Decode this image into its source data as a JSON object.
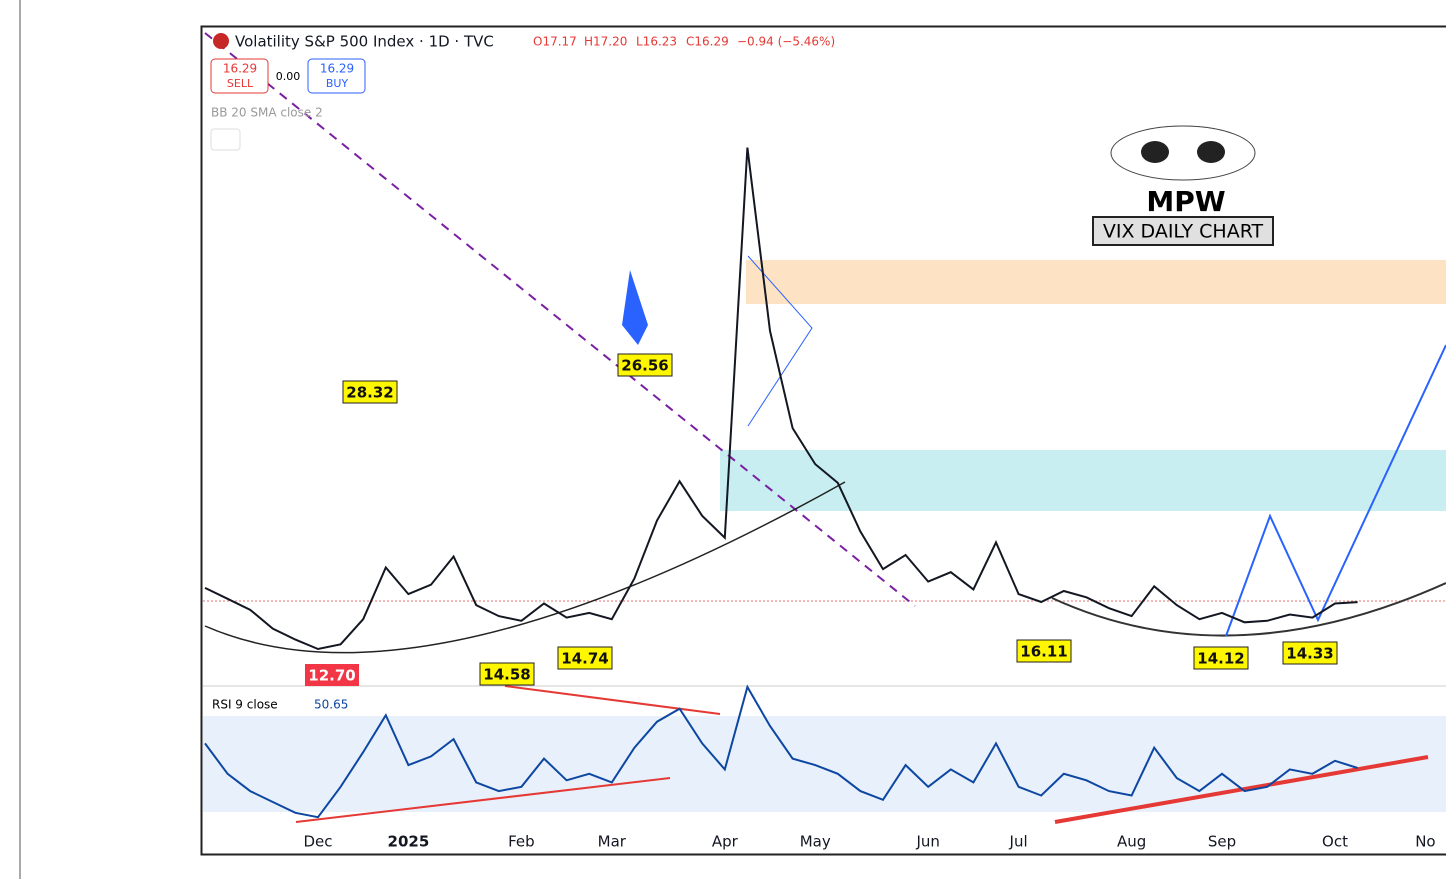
{
  "header": {
    "title": "Volatility S&P 500 Index · 1D · TVC",
    "ohlc": [
      "O17.17",
      "H17.20",
      "L16.23",
      "C16.29",
      "−0.94 (−5.46%)"
    ],
    "sell_price": "16.29",
    "sell": "SELL",
    "spread": "0.00",
    "buy_price": "16.29",
    "buy": "BUY",
    "indicator": "BB 20 SMA close 2",
    "rsi_name": "RSI 9 close",
    "rsi_value": "50.65"
  },
  "branding": {
    "logo": "MPW",
    "caption": "VIX DAILY CHART"
  },
  "annotations": [
    "28.32",
    "26.56",
    "12.70",
    "14.58",
    "14.74",
    "16.11",
    "14.12",
    "14.33"
  ],
  "chart_data": [
    {
      "type": "line",
      "color": "#131722",
      "ylim": [
        11,
        53
      ],
      "categories": [
        null,
        null,
        null,
        null,
        null,
        "Dec",
        null,
        null,
        null,
        "2025",
        null,
        null,
        null,
        null,
        "Feb",
        null,
        null,
        null,
        "Mar",
        null,
        null,
        null,
        null,
        "Apr",
        null,
        null,
        null,
        "May",
        null,
        null,
        null,
        null,
        "Jun",
        null,
        null,
        null,
        "Jul",
        null,
        null,
        null,
        null,
        "Aug",
        null,
        null,
        null,
        "Sep",
        null,
        null,
        null,
        null,
        "Oct",
        null,
        null,
        null,
        "No"
      ],
      "values": [
        17.2,
        16.5,
        15.8,
        14.6,
        13.9,
        13.3,
        13.6,
        15.2,
        18.5,
        16.8,
        17.4,
        19.2,
        16.1,
        15.4,
        15.1,
        16.2,
        15.3,
        15.6,
        15.2,
        17.8,
        21.5,
        24.0,
        21.8,
        20.4,
        45.3,
        33.6,
        27.4,
        25.1,
        23.9,
        20.8,
        18.4,
        19.3,
        17.6,
        18.2,
        17.1,
        20.1,
        16.8,
        16.3,
        17.0,
        16.6,
        15.9,
        15.4,
        17.3,
        16.1,
        15.2,
        15.6,
        15.0,
        15.1,
        15.5,
        15.3,
        16.2,
        16.29,
        null,
        null,
        null
      ]
    },
    {
      "type": "line",
      "color": "#0d47a1",
      "ylim": [
        23,
        88
      ],
      "values": [
        62,
        48,
        40,
        35,
        30,
        28,
        42,
        58,
        75,
        52,
        56,
        64,
        44,
        40,
        42,
        55,
        45,
        48,
        44,
        60,
        72,
        78,
        62,
        50,
        88,
        70,
        55,
        52,
        48,
        40,
        36,
        52,
        42,
        50,
        44,
        62,
        42,
        38,
        48,
        45,
        40,
        38,
        60,
        46,
        40,
        48,
        40,
        42,
        50,
        48,
        54,
        50.65,
        null,
        null,
        null
      ]
    }
  ]
}
